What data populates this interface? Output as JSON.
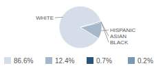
{
  "chart_data": {
    "type": "pie",
    "categories": [
      "WHITE",
      "HISPANIC",
      "ASIAN",
      "BLACK"
    ],
    "values": [
      86.6,
      12.4,
      0.7,
      0.2
    ],
    "value_labels": [
      "86.6%",
      "12.4%",
      "0.7%",
      "0.2%"
    ],
    "colors": [
      "#d5dee8",
      "#a5b7ca",
      "#2b5577",
      "#7a97b3"
    ],
    "legend": "bottom"
  }
}
